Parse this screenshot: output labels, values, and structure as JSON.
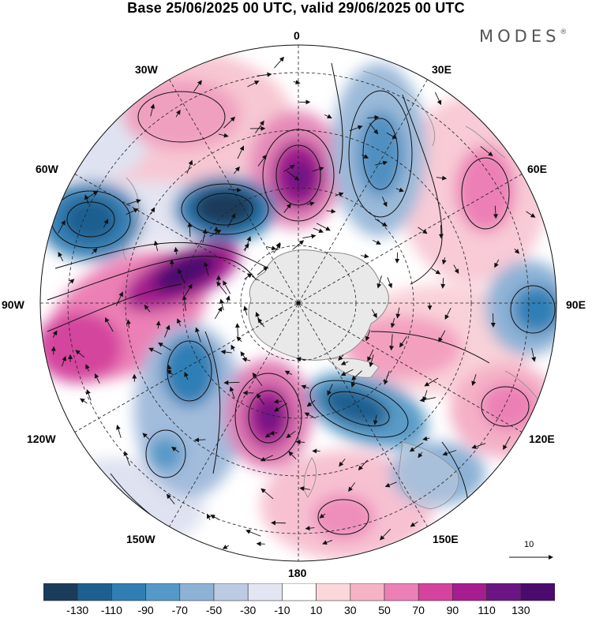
{
  "title": "Base 25/06/2025 00 UTC, valid 29/06/2025 00 UTC",
  "brand": "MODES",
  "brand_mark": "®",
  "longitude_labels": {
    "lon_0": "0",
    "lon_30e": "30E",
    "lon_60e": "60E",
    "lon_90e": "90E",
    "lon_120e": "120E",
    "lon_150e": "150E",
    "lon_180": "180",
    "lon_150w": "150W",
    "lon_120w": "120W",
    "lon_90w": "90W",
    "lon_60w": "60W",
    "lon_30w": "30W"
  },
  "reference_vector_label": "10",
  "colorbar": {
    "tick_labels": [
      "-130",
      "-110",
      "-90",
      "-70",
      "-50",
      "-30",
      "-10",
      "10",
      "30",
      "50",
      "70",
      "90",
      "110",
      "130"
    ],
    "colors": [
      "#1b3b5a",
      "#1f5f8f",
      "#2f7fb5",
      "#5499c7",
      "#8db2d6",
      "#bccbe3",
      "#e3e5f2",
      "#ffffff",
      "#fbd7dc",
      "#f5b3c8",
      "#ec80b6",
      "#d4449e",
      "#a51d8e",
      "#6b1483",
      "#4a0a6e"
    ]
  },
  "map_fill_colors": {
    "land": "#e9e9e9",
    "coast": "#8a8a8a"
  }
}
